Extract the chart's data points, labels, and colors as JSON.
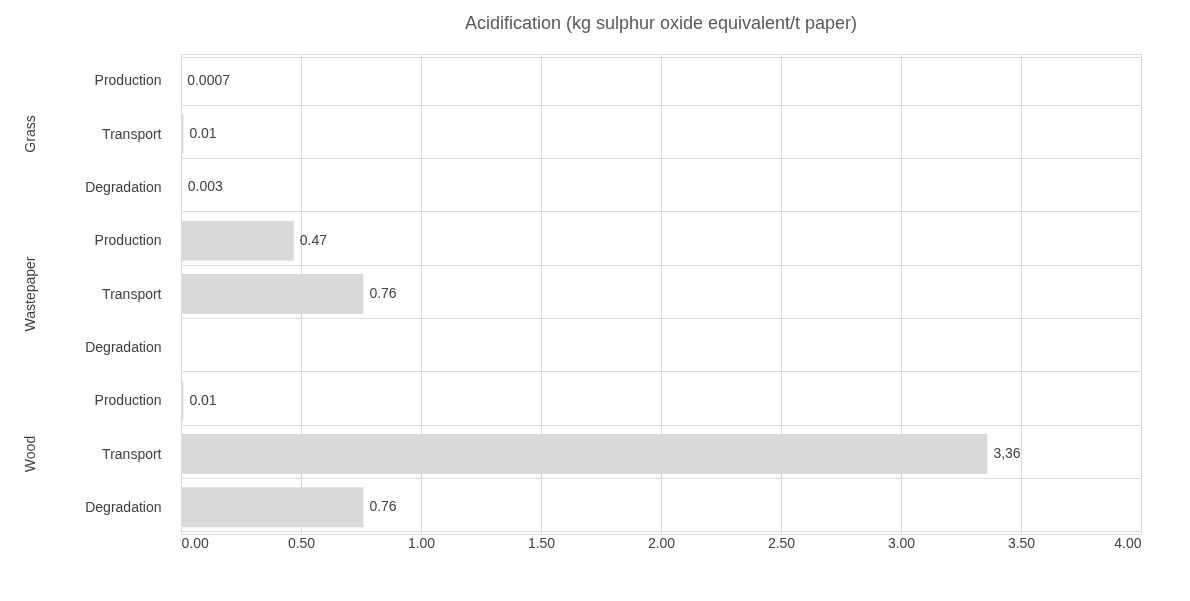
{
  "chart_data": {
    "type": "bar",
    "orientation": "horizontal",
    "title": "Acidification (kg sulphur oxide equivalent/t paper)",
    "categories": [
      "Production",
      "Transport",
      "Degradation",
      "Production",
      "Transport",
      "Degradation",
      "Production",
      "Transport",
      "Degradation"
    ],
    "values": [
      0.0007,
      0.01,
      0.003,
      0.47,
      0.76,
      null,
      0.01,
      3.36,
      0.76
    ],
    "value_labels": [
      "0.0007",
      "0.01",
      "0.003",
      "0.47",
      "0.76",
      null,
      "0.01",
      "3,36",
      "0.76"
    ],
    "color": "#d9d9d9",
    "annotations": [
      "Grass",
      "Wastepaper",
      "Wood"
    ],
    "xlim": [
      0,
      4
    ],
    "xticks": [
      {
        "value": 0,
        "label": "0.00"
      },
      {
        "value": 0.5,
        "label": "0.50"
      },
      {
        "value": 1,
        "label": "1.00"
      },
      {
        "value": 1.5,
        "label": "1.50"
      },
      {
        "value": 2,
        "label": "2.00"
      },
      {
        "value": 2.5,
        "label": "2.50"
      },
      {
        "value": 3,
        "label": "3.00"
      },
      {
        "value": 3.5,
        "label": "3.50"
      },
      {
        "value": 4,
        "label": "4.00"
      }
    ],
    "grid": true
  }
}
